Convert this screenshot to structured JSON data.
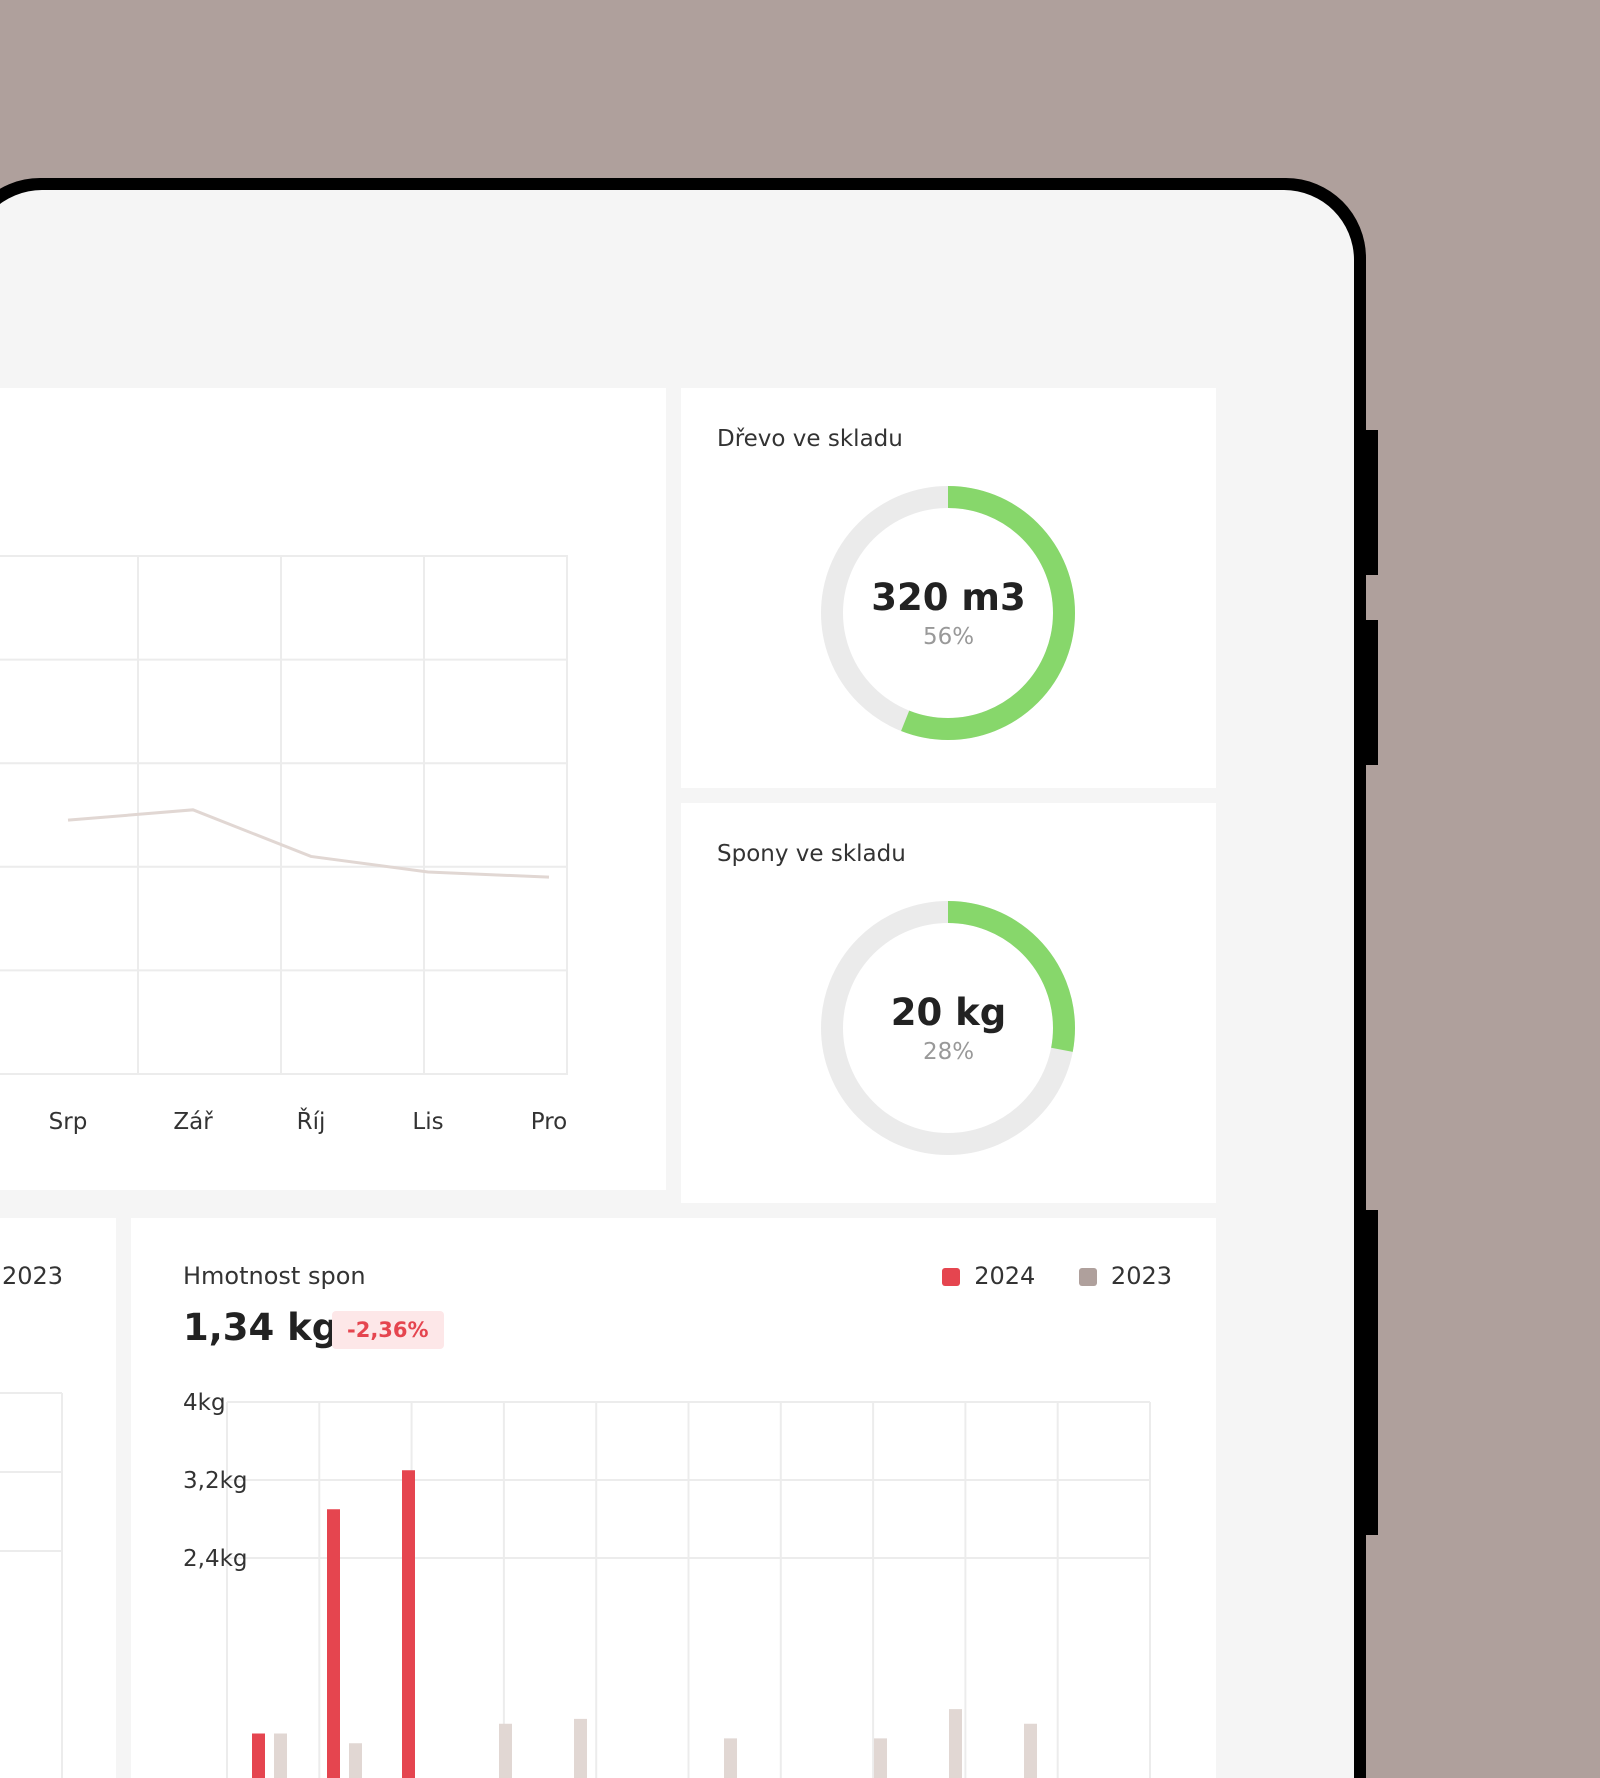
{
  "colors": {
    "background": "#afa09c",
    "accent_green": "#87d76b",
    "ring_track": "#ebebeb",
    "red_2024": "#e5454f",
    "taupe_2023": "#afa09c",
    "bar_2023": "#e1d7d3",
    "line": "#e1d7d3",
    "badge_bg": "#fde7e8"
  },
  "line_chart": {
    "x_labels": [
      "Srp",
      "Zář",
      "Říj",
      "Lis",
      "Pro"
    ]
  },
  "stock_cards": [
    {
      "title": "Dřevo ve skladu",
      "value": "320 m3",
      "percent_label": "56%",
      "fraction": 0.56
    },
    {
      "title": "Spony ve skladu",
      "value": "20 kg",
      "percent_label": "28%",
      "fraction": 0.28
    }
  ],
  "left_card": {
    "legend_partial": "2023"
  },
  "weight_card": {
    "title": "Hmotnost spon",
    "value": "1,34 kg",
    "change": "-2,36%",
    "legend": [
      {
        "label": "2024",
        "color": "#e5454f"
      },
      {
        "label": "2023",
        "color": "#afa09c"
      }
    ]
  },
  "chart_data": [
    {
      "type": "line",
      "x": [
        "Srp",
        "Zář",
        "Říj",
        "Lis",
        "Pro"
      ],
      "series": [
        {
          "values": [
            2.45,
            2.55,
            2.1,
            1.95,
            1.9
          ]
        }
      ],
      "grid": true
    },
    {
      "type": "bar",
      "ylabel": "",
      "y_tick_labels": [
        "4kg",
        "3,2kg",
        "2,4kg"
      ],
      "ylim": [
        0,
        4
      ],
      "series": [
        {
          "name": "2024",
          "values": [
            0.6,
            2.9,
            3.3,
            0,
            0,
            0,
            0,
            0,
            0,
            0,
            0,
            0
          ]
        },
        {
          "name": "2023",
          "values": [
            0.6,
            0.5,
            0,
            0.7,
            0.75,
            0,
            0.55,
            0,
            0.55,
            0.85,
            0.7,
            0
          ]
        }
      ],
      "grid": true
    }
  ]
}
